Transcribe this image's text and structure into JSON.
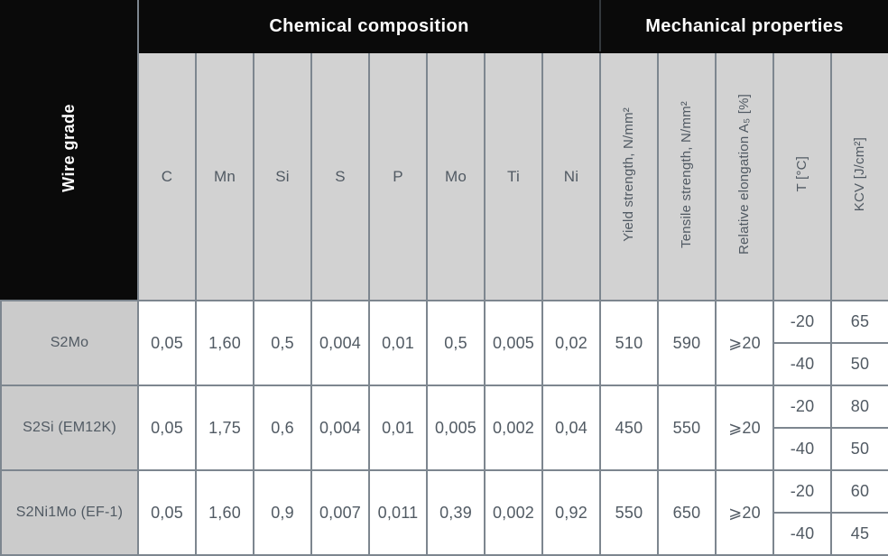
{
  "table": {
    "corner_header": "Wire grade",
    "group_headers": {
      "chemical": "Chemical composition",
      "mechanical": "Mechanical properties"
    },
    "chemical_columns": [
      "C",
      "Mn",
      "Si",
      "S",
      "P",
      "Mo",
      "Ti",
      "Ni"
    ],
    "mechanical_columns": [
      "Yield strength, N/mm²",
      "Tensile strength, N/mm²",
      "Relative elongation A₅ [%]",
      "T [°C]",
      "KCV [J/cm²]"
    ],
    "rows": [
      {
        "grade": "S2Mo",
        "chemical": [
          "0,05",
          "1,60",
          "0,5",
          "0,004",
          "0,01",
          "0,5",
          "0,005",
          "0,02"
        ],
        "yield_strength": "510",
        "tensile_strength": "590",
        "elongation": "⩾20",
        "impact": [
          {
            "t": "-20",
            "kcv": "65"
          },
          {
            "t": "-40",
            "kcv": "50"
          }
        ]
      },
      {
        "grade": "S2Si (EM12K)",
        "chemical": [
          "0,05",
          "1,75",
          "0,6",
          "0,004",
          "0,01",
          "0,005",
          "0,002",
          "0,04"
        ],
        "yield_strength": "450",
        "tensile_strength": "550",
        "elongation": "⩾20",
        "impact": [
          {
            "t": "-20",
            "kcv": "80"
          },
          {
            "t": "-40",
            "kcv": "50"
          }
        ]
      },
      {
        "grade": "S2Ni1Mo (EF-1)",
        "chemical": [
          "0,05",
          "1,60",
          "0,9",
          "0,007",
          "0,011",
          "0,39",
          "0,002",
          "0,92"
        ],
        "yield_strength": "550",
        "tensile_strength": "650",
        "elongation": "⩾20",
        "impact": [
          {
            "t": "-20",
            "kcv": "60"
          },
          {
            "t": "-40",
            "kcv": "45"
          }
        ]
      }
    ],
    "colors": {
      "header_bg": "#0a0a0a",
      "header_text": "#ffffff",
      "subheader_bg": "#d2d2d2",
      "grade_bg": "#cbcbcb",
      "grid": "#7d868f",
      "text": "#515a63"
    }
  }
}
